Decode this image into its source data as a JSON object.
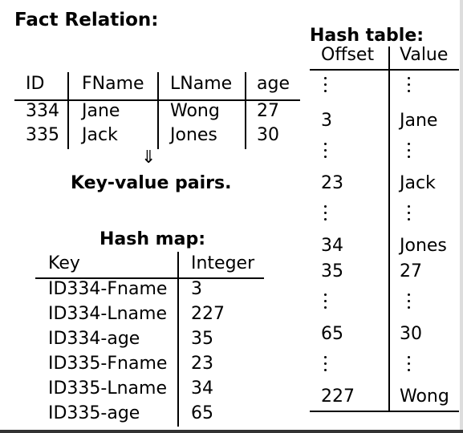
{
  "fact_relation": {
    "title": "Fact Relation:",
    "headers": [
      "ID",
      "FName",
      "LName",
      "age"
    ],
    "rows": [
      [
        "334",
        "Jane",
        "Wong",
        "27"
      ],
      [
        "335",
        "Jack",
        "Jones",
        "30"
      ]
    ]
  },
  "arrow": {
    "symbol": "⇓",
    "label": "Key-value pairs."
  },
  "hash_map": {
    "title": "Hash map:",
    "headers": [
      "Key",
      "Integer"
    ],
    "rows": [
      [
        "ID334-Fname",
        "3"
      ],
      [
        "ID334-Lname",
        "227"
      ],
      [
        "ID334-age",
        "35"
      ],
      [
        "ID335-Fname",
        "23"
      ],
      [
        "ID335-Lname",
        "34"
      ],
      [
        "ID335-age",
        "65"
      ]
    ]
  },
  "hash_table": {
    "title": "Hash table:",
    "headers": [
      "Offset",
      "Value"
    ],
    "rows": [
      [
        "3",
        "Jane"
      ],
      [
        "23",
        "Jack"
      ],
      [
        "34",
        "Jones"
      ],
      [
        "35",
        "27"
      ],
      [
        "65",
        "30"
      ],
      [
        "227",
        "Wong"
      ]
    ]
  }
}
